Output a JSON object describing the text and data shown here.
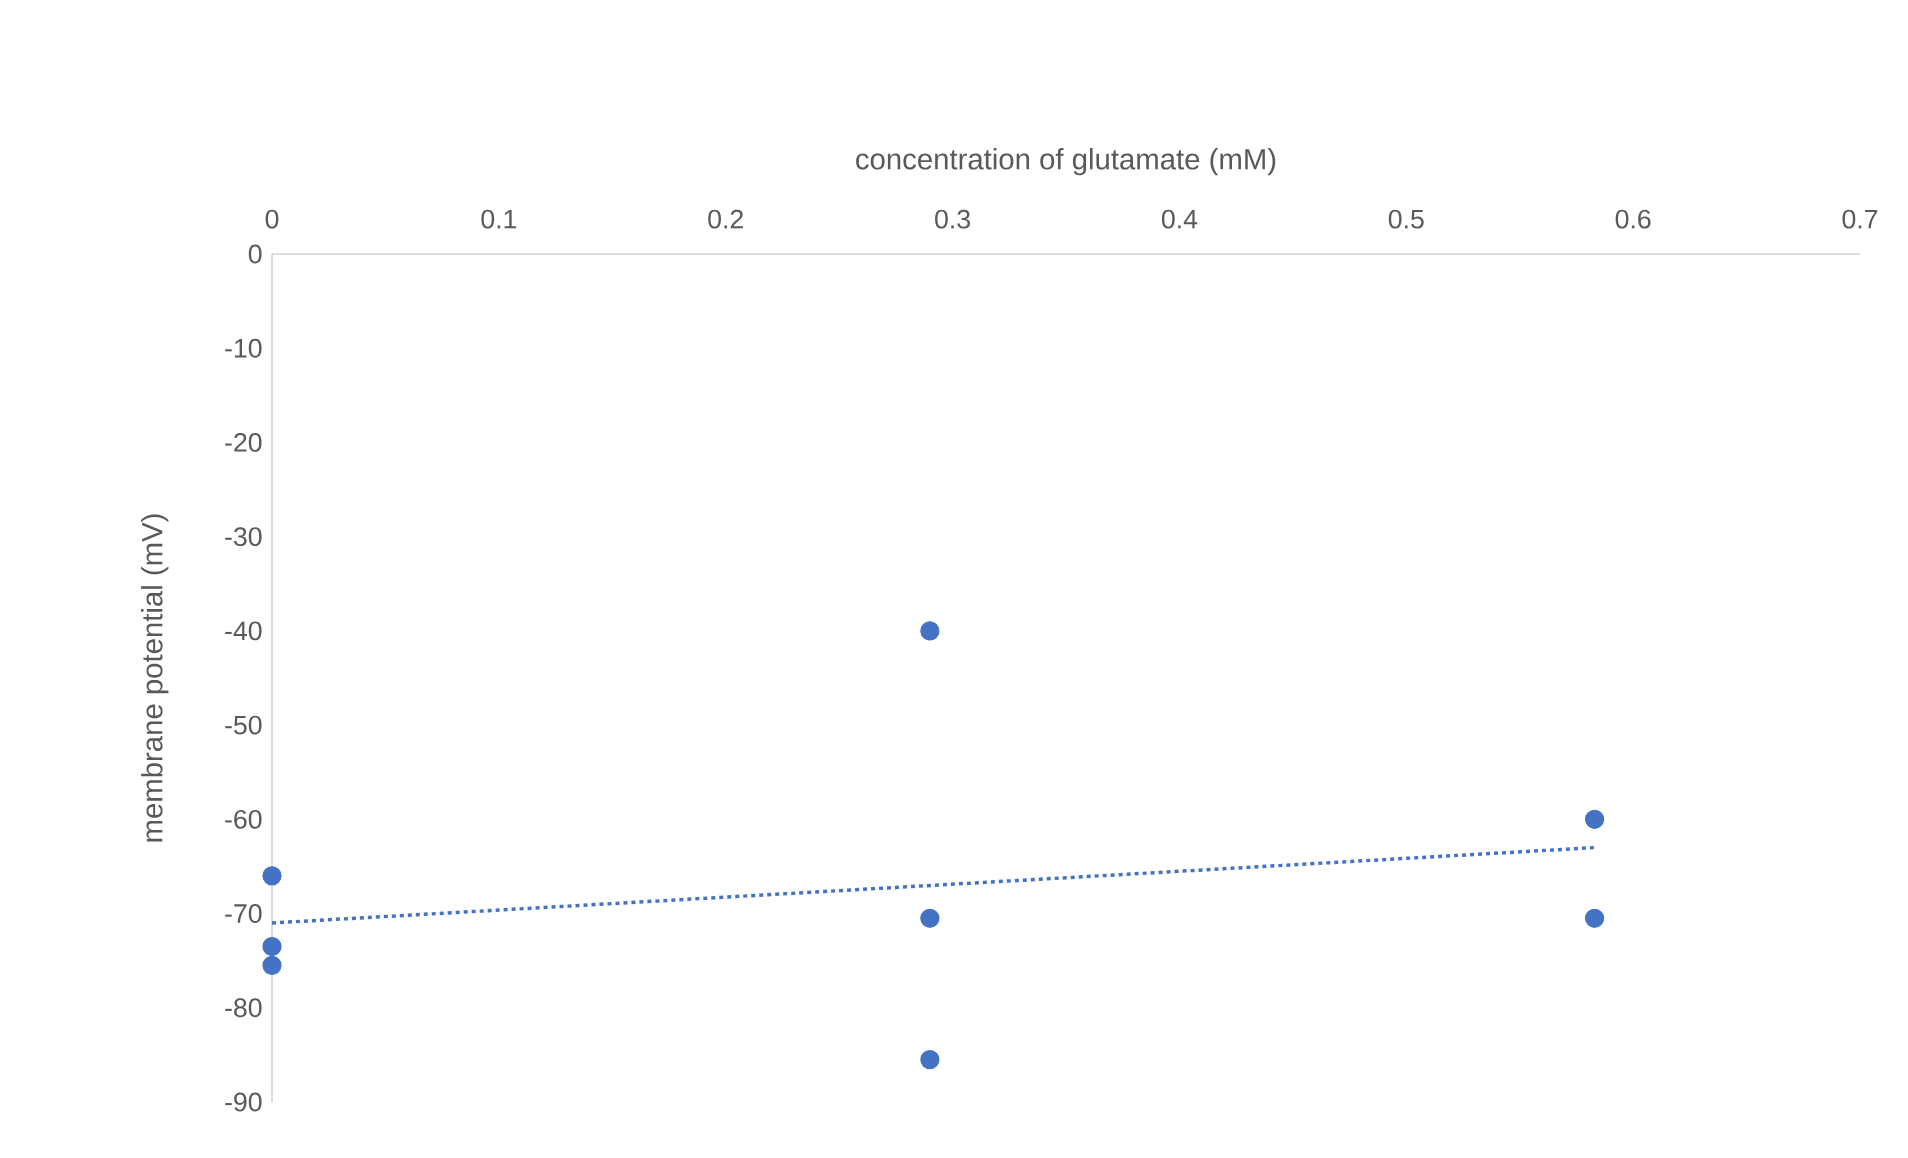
{
  "chart_data": {
    "type": "scatter",
    "xlabel": "concentration of glutamate (mM)",
    "ylabel": "membrane potential (mV)",
    "xlim": [
      0,
      0.7
    ],
    "xticks": [
      0,
      0.1,
      0.2,
      0.3,
      0.4,
      0.5,
      0.6,
      0.7
    ],
    "ylim": [
      -90,
      0
    ],
    "yticks": [
      0,
      -10,
      -20,
      -30,
      -40,
      -50,
      -60,
      -70,
      -80,
      -90
    ],
    "series": [
      {
        "x": [
          0,
          0,
          0,
          0.29,
          0.29,
          0.29,
          0.583,
          0.583
        ],
        "values": [
          -66,
          -73.5,
          -75.5,
          -40,
          -70.5,
          -85.5,
          -60,
          -70.5
        ],
        "color": "#4472c4",
        "marker": "circle"
      },
      {
        "type": "line",
        "x": [
          0,
          0.583
        ],
        "values": [
          -71,
          -63
        ],
        "color": "#4472c4",
        "line_style": "dotted",
        "marker": "none"
      }
    ]
  }
}
